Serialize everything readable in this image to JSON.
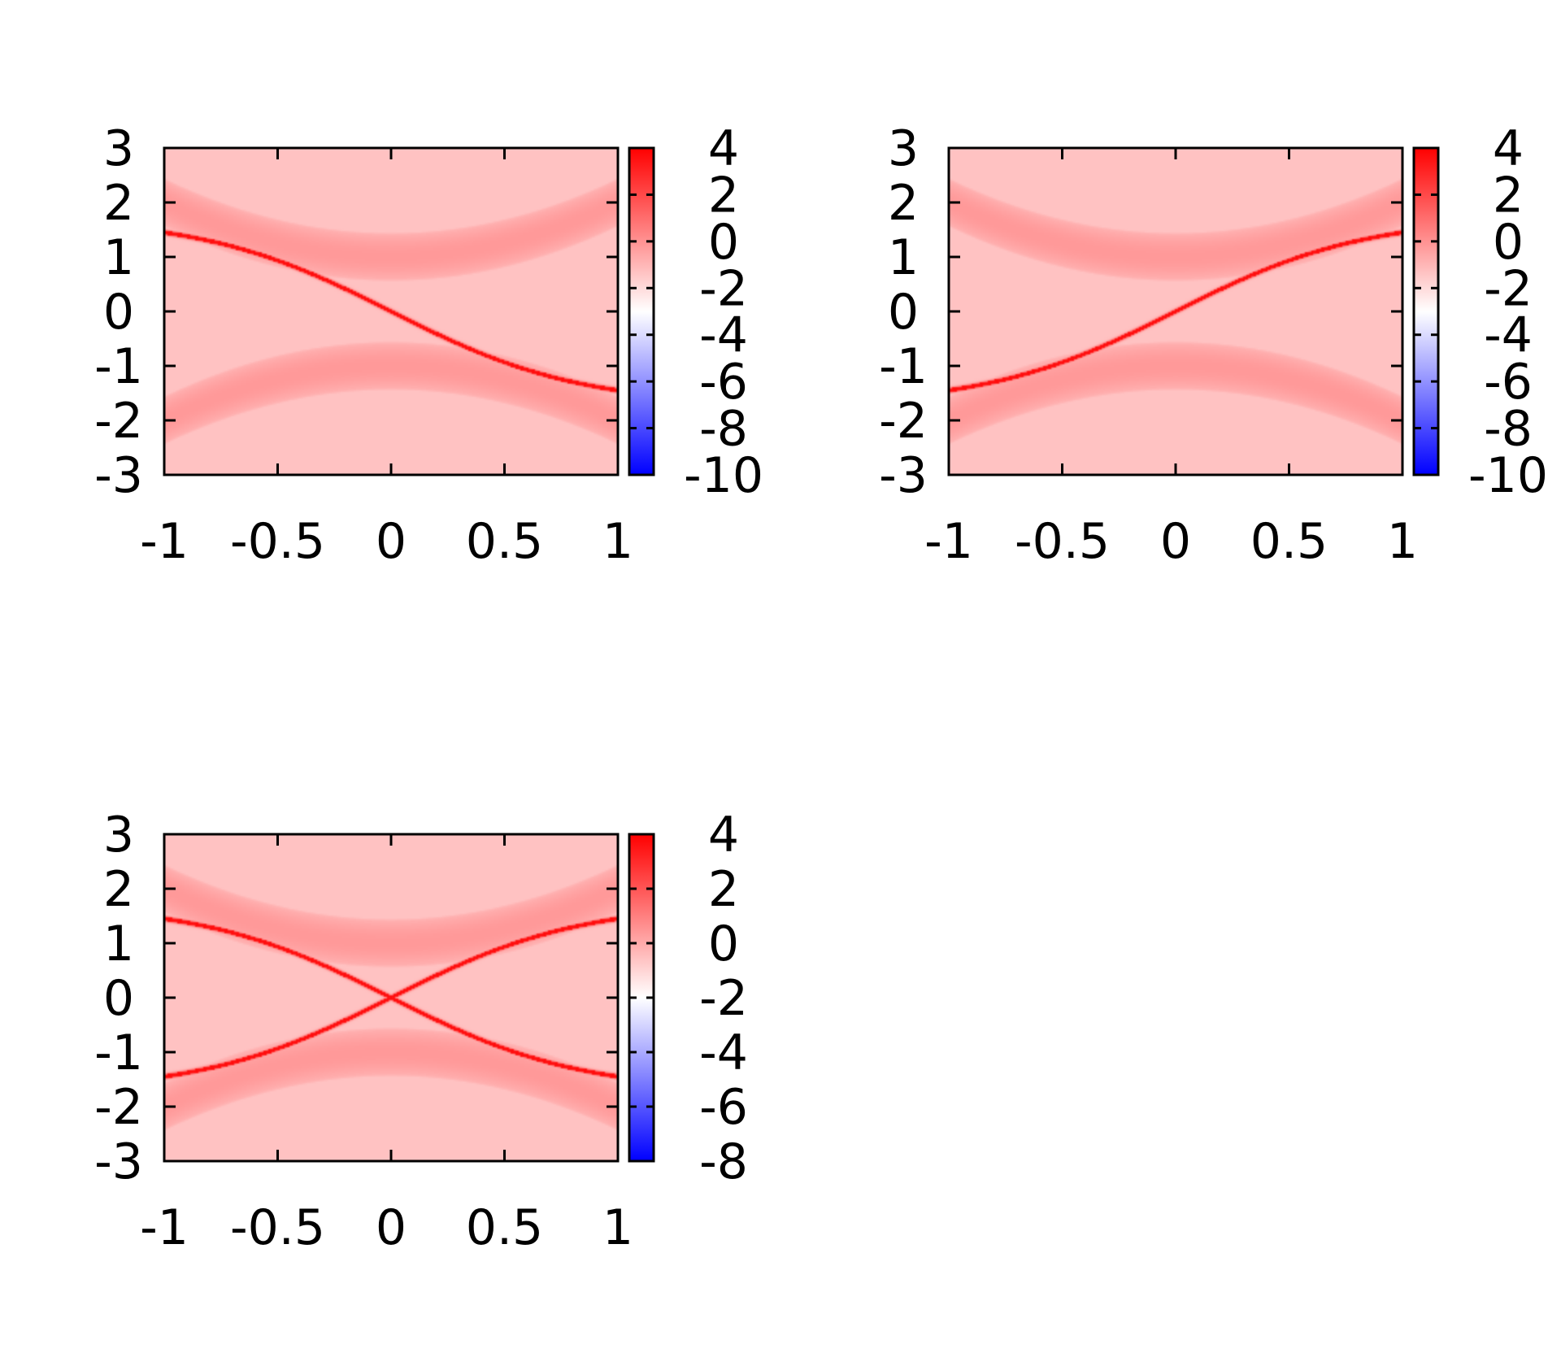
{
  "chart_data": [
    {
      "type": "heatmap",
      "panel": "top-left",
      "title": "",
      "xlabel": "",
      "ylabel": "",
      "xlim": [
        -1,
        1
      ],
      "ylim": [
        -3,
        3
      ],
      "x_ticks": [
        "-1",
        "-0.5",
        "0",
        "0.5",
        "1"
      ],
      "y_ticks": [
        "3",
        "2",
        "1",
        "0",
        "-1",
        "-2",
        "-3"
      ],
      "colorbar": {
        "range": [
          -10,
          4
        ],
        "ticks": [
          "4",
          "2",
          "0",
          "-2",
          "-4",
          "-6",
          "-8",
          "-10"
        ],
        "colors": [
          "#0000ff",
          "#ffffff",
          "#ff0000"
        ]
      },
      "features": {
        "outer_band_edge_at_x0": 1.5,
        "outer_band_edge_at_edges": 2.5,
        "inner_band_edge_at_x0": 0.5,
        "inner_band_edge_at_edges": 1.5,
        "surface_state": "single line crossing from (-1, 1.45) to (1, -1.45) with negative slope"
      }
    },
    {
      "type": "heatmap",
      "panel": "top-right",
      "title": "",
      "xlabel": "",
      "ylabel": "",
      "xlim": [
        -1,
        1
      ],
      "ylim": [
        -3,
        3
      ],
      "x_ticks": [
        "-1",
        "-0.5",
        "0",
        "0.5",
        "1"
      ],
      "y_ticks": [
        "3",
        "2",
        "1",
        "0",
        "-1",
        "-2",
        "-3"
      ],
      "colorbar": {
        "range": [
          -10,
          4
        ],
        "ticks": [
          "4",
          "2",
          "0",
          "-2",
          "-4",
          "-6",
          "-8",
          "-10"
        ],
        "colors": [
          "#0000ff",
          "#ffffff",
          "#ff0000"
        ]
      },
      "features": {
        "outer_band_edge_at_x0": 1.5,
        "outer_band_edge_at_edges": 2.5,
        "inner_band_edge_at_x0": 0.5,
        "inner_band_edge_at_edges": 1.5,
        "surface_state": "single line crossing from (-1, -1.45) to (1, 1.45) with positive slope"
      }
    },
    {
      "type": "heatmap",
      "panel": "bottom-left",
      "title": "",
      "xlabel": "",
      "ylabel": "",
      "xlim": [
        -1,
        1
      ],
      "ylim": [
        -3,
        3
      ],
      "x_ticks": [
        "-1",
        "-0.5",
        "0",
        "0.5",
        "1"
      ],
      "y_ticks": [
        "3",
        "2",
        "1",
        "0",
        "-1",
        "-2",
        "-3"
      ],
      "colorbar": {
        "range": [
          -8,
          4
        ],
        "ticks": [
          "4",
          "2",
          "0",
          "-2",
          "-4",
          "-6",
          "-8"
        ],
        "colors": [
          "#0000ff",
          "#ffffff",
          "#ff0000"
        ]
      },
      "features": {
        "outer_band_edge_at_x0": 1.5,
        "outer_band_edge_at_edges": 2.5,
        "inner_band_edge_at_x0": 0.5,
        "inner_band_edge_at_edges": 1.5,
        "surface_state": "two lines crossing at (0, 0), an X shape"
      }
    }
  ]
}
